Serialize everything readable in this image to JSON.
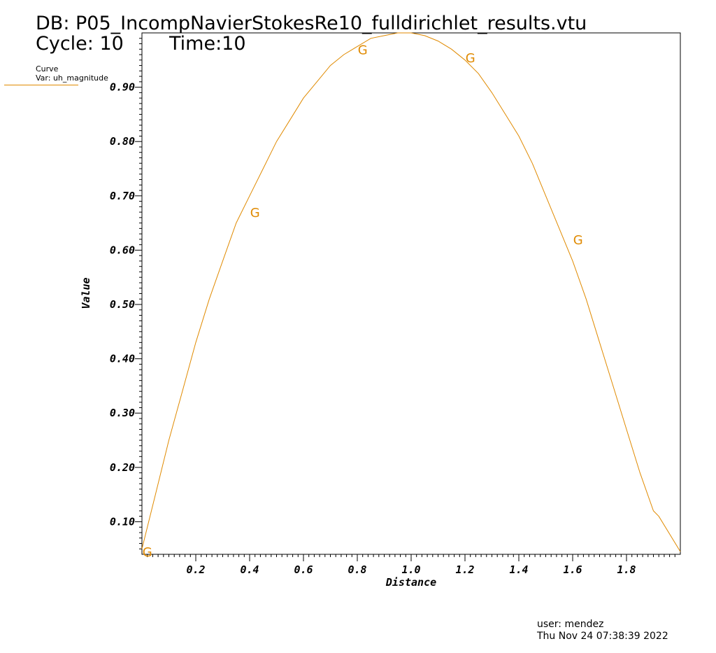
{
  "header": {
    "db": "DB: P05_IncompNavierStokesRe10_fulldirichlet_results.vtu",
    "cycle": "Cycle: 10",
    "time": "Time:10"
  },
  "legend": {
    "kind": "Curve",
    "var": "Var: uh_magnitude"
  },
  "footer": {
    "user": "user: mendez",
    "date": "Thu Nov 24 07:38:39 2022"
  },
  "colors": {
    "curve": "#e08a00"
  },
  "chart_data": {
    "type": "line",
    "title": "",
    "xlabel": "Distance",
    "ylabel": "Value",
    "xlim": [
      0.0,
      2.0
    ],
    "ylim": [
      0.04,
      1.0
    ],
    "xticks": [
      "0.2",
      "0.4",
      "0.6",
      "0.8",
      "1.0",
      "1.2",
      "1.4",
      "1.6",
      "1.8"
    ],
    "yticks": [
      "0.10",
      "0.20",
      "0.30",
      "0.40",
      "0.50",
      "0.60",
      "0.70",
      "0.80",
      "0.90"
    ],
    "grid": false,
    "legend_position": "top-left",
    "series": [
      {
        "x": [
          0.0,
          0.05,
          0.1,
          0.15,
          0.2,
          0.25,
          0.3,
          0.35,
          0.4,
          0.45,
          0.5,
          0.55,
          0.6,
          0.65,
          0.7,
          0.75,
          0.8,
          0.85,
          0.9,
          0.95,
          1.0,
          1.05,
          1.1,
          1.15,
          1.2,
          1.25,
          1.3,
          1.35,
          1.4,
          1.45,
          1.5,
          1.55,
          1.6,
          1.65,
          1.7,
          1.75,
          1.8,
          1.85,
          1.9,
          1.92,
          2.0
        ],
        "y": [
          0.05,
          0.15,
          0.25,
          0.34,
          0.43,
          0.51,
          0.58,
          0.65,
          0.7,
          0.75,
          0.8,
          0.84,
          0.88,
          0.91,
          0.94,
          0.96,
          0.975,
          0.99,
          0.995,
          1.0,
          1.0,
          0.995,
          0.985,
          0.97,
          0.95,
          0.925,
          0.89,
          0.85,
          0.81,
          0.76,
          0.7,
          0.64,
          0.58,
          0.51,
          0.43,
          0.35,
          0.27,
          0.19,
          0.12,
          0.11,
          0.045
        ]
      }
    ],
    "markers": {
      "glyph": "G",
      "x": [
        0.02,
        0.42,
        0.82,
        1.22,
        1.62
      ],
      "y": [
        0.045,
        0.67,
        0.97,
        0.955,
        0.62
      ]
    }
  }
}
